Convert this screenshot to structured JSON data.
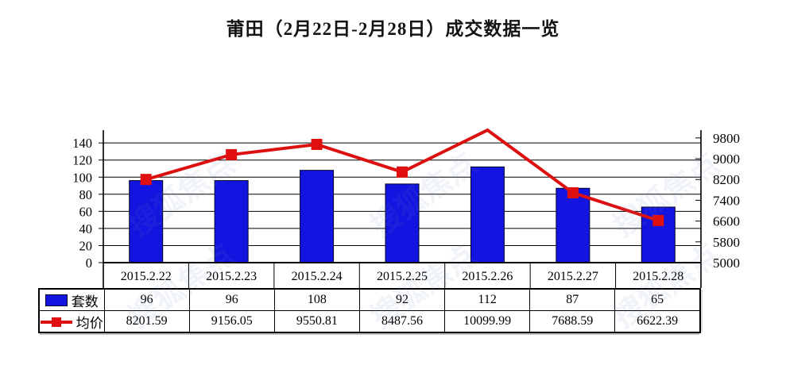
{
  "title": "莆田（2月22日-2月28日）成交数据一览",
  "watermark_text": "搜狐焦点",
  "colors": {
    "bar_fill": "#1414E0",
    "bar_border": "#000428",
    "line": "#DD1010",
    "marker": "#E01010",
    "axis": "#000000",
    "grid": "#000000",
    "text": "#000000"
  },
  "chart_data": {
    "type": "bar",
    "title": "莆田（2月22日-2月28日）成交数据一览",
    "categories": [
      "2015.2.22",
      "2015.2.23",
      "2015.2.24",
      "2015.2.25",
      "2015.2.26",
      "2015.2.27",
      "2015.2.28"
    ],
    "series": [
      {
        "name": "套数",
        "type": "bar",
        "axis": "left",
        "values": [
          96,
          96,
          108,
          92,
          112,
          87,
          65
        ]
      },
      {
        "name": "均价",
        "type": "line",
        "axis": "right",
        "values": [
          8201.59,
          9156.05,
          9550.81,
          8487.56,
          10099.99,
          7688.59,
          6622.39
        ],
        "marker": "square",
        "marker_visible": [
          true,
          true,
          true,
          true,
          false,
          true,
          true
        ]
      }
    ],
    "left_axis": {
      "min": 0,
      "max": 155,
      "ticks": [
        0,
        20,
        40,
        60,
        80,
        100,
        120,
        140
      ]
    },
    "right_axis": {
      "min": 5000,
      "max": 10100,
      "ticks": [
        5000,
        5800,
        6600,
        7400,
        8200,
        9000,
        9800
      ]
    },
    "grid": "horizontal",
    "legend_position": "table-left-column"
  },
  "table": {
    "rows": [
      {
        "label": "套数",
        "swatch": "bar",
        "values": [
          "96",
          "96",
          "108",
          "92",
          "112",
          "87",
          "65"
        ]
      },
      {
        "label": "均价",
        "swatch": "line",
        "values": [
          "8201.59",
          "9156.05",
          "9550.81",
          "8487.56",
          "10099.99",
          "7688.59",
          "6622.39"
        ]
      }
    ]
  }
}
